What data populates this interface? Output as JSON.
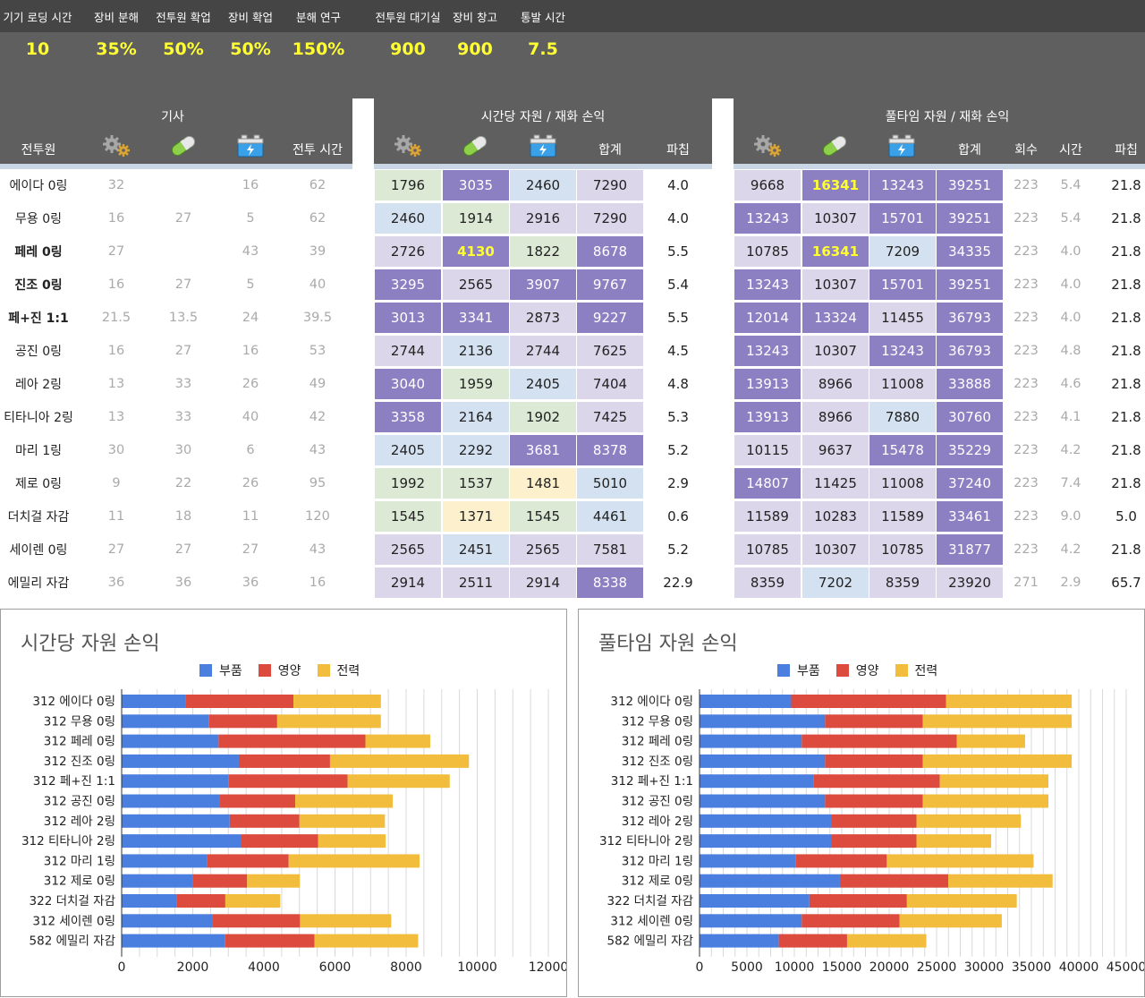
{
  "settings": [
    {
      "label": "기기 로딩 시간",
      "value": "10"
    },
    {
      "label": "장비 분해",
      "value": "35%"
    },
    {
      "label": "전투원 확업",
      "value": "50%"
    },
    {
      "label": "장비 확업",
      "value": "50%"
    },
    {
      "label": "분해 연구",
      "value": "150%"
    },
    {
      "label": "전투원 대기실",
      "value": "900"
    },
    {
      "label": "장비 창고",
      "value": "900"
    },
    {
      "label": "통발 시간",
      "value": "7.5"
    }
  ],
  "groups": {
    "base": "기사",
    "hourly": "시간당 자원 / 재화 손익",
    "fulltime": "풀타임 자원 / 재화 손익"
  },
  "headers": {
    "unit": "전투원",
    "battle_time": "전투 시간",
    "total": "합계",
    "damage": "파칩",
    "total2": "합계",
    "count": "회수",
    "time": "시간",
    "damage2": "파칩"
  },
  "icons": {
    "parts": "gears-icon",
    "nutrition": "capsule-icon",
    "power": "battery-icon"
  },
  "colors": {
    "purple": "#8c7fc2",
    "lavender": "#dcd6ea",
    "blue": "#d4e1f1",
    "green": "#dbe9d5",
    "yellow": "#fdf1cd",
    "highlight_text": "#ffff33",
    "series_parts": "#4a7fe0",
    "series_nutrition": "#dc4b3e",
    "series_power": "#f2bd3c"
  },
  "rows": [
    {
      "name": "에이다 0링",
      "bold": false,
      "base": [
        "32",
        "",
        "16",
        "62"
      ],
      "hourly": [
        {
          "v": "1796",
          "c": "green"
        },
        {
          "v": "3035",
          "c": "purple"
        },
        {
          "v": "2460",
          "c": "blue"
        },
        {
          "v": "7290",
          "c": "lavender"
        }
      ],
      "dmg": "4.0",
      "full": [
        {
          "v": "9668",
          "c": "lavender"
        },
        {
          "v": "16341",
          "c": "purple",
          "hl": true
        },
        {
          "v": "13243",
          "c": "purple"
        },
        {
          "v": "39251",
          "c": "purple"
        }
      ],
      "count": "223",
      "time": "5.4",
      "dmg2": "21.8"
    },
    {
      "name": "무용 0링",
      "bold": false,
      "base": [
        "16",
        "27",
        "5",
        "62"
      ],
      "hourly": [
        {
          "v": "2460",
          "c": "blue"
        },
        {
          "v": "1914",
          "c": "green"
        },
        {
          "v": "2916",
          "c": "lavender"
        },
        {
          "v": "7290",
          "c": "lavender"
        }
      ],
      "dmg": "4.0",
      "full": [
        {
          "v": "13243",
          "c": "purple"
        },
        {
          "v": "10307",
          "c": "lavender"
        },
        {
          "v": "15701",
          "c": "purple"
        },
        {
          "v": "39251",
          "c": "purple"
        }
      ],
      "count": "223",
      "time": "5.4",
      "dmg2": "21.8"
    },
    {
      "name": "페레 0링",
      "bold": true,
      "base": [
        "27",
        "",
        "43",
        "39"
      ],
      "hourly": [
        {
          "v": "2726",
          "c": "lavender"
        },
        {
          "v": "4130",
          "c": "purple",
          "hl": true
        },
        {
          "v": "1822",
          "c": "green"
        },
        {
          "v": "8678",
          "c": "purple"
        }
      ],
      "dmg": "5.5",
      "full": [
        {
          "v": "10785",
          "c": "lavender"
        },
        {
          "v": "16341",
          "c": "purple",
          "hl": true
        },
        {
          "v": "7209",
          "c": "blue"
        },
        {
          "v": "34335",
          "c": "purple"
        }
      ],
      "count": "223",
      "time": "4.0",
      "dmg2": "21.8"
    },
    {
      "name": "진조 0링",
      "bold": true,
      "base": [
        "16",
        "27",
        "5",
        "40"
      ],
      "hourly": [
        {
          "v": "3295",
          "c": "purple"
        },
        {
          "v": "2565",
          "c": "lavender"
        },
        {
          "v": "3907",
          "c": "purple"
        },
        {
          "v": "9767",
          "c": "purple"
        }
      ],
      "dmg": "5.4",
      "full": [
        {
          "v": "13243",
          "c": "purple"
        },
        {
          "v": "10307",
          "c": "lavender"
        },
        {
          "v": "15701",
          "c": "purple"
        },
        {
          "v": "39251",
          "c": "purple"
        }
      ],
      "count": "223",
      "time": "4.0",
      "dmg2": "21.8"
    },
    {
      "name": "페+진 1:1",
      "bold": true,
      "base": [
        "21.5",
        "13.5",
        "24",
        "39.5"
      ],
      "hourly": [
        {
          "v": "3013",
          "c": "purple"
        },
        {
          "v": "3341",
          "c": "purple"
        },
        {
          "v": "2873",
          "c": "lavender"
        },
        {
          "v": "9227",
          "c": "purple"
        }
      ],
      "dmg": "5.5",
      "full": [
        {
          "v": "12014",
          "c": "purple"
        },
        {
          "v": "13324",
          "c": "purple"
        },
        {
          "v": "11455",
          "c": "lavender"
        },
        {
          "v": "36793",
          "c": "purple"
        }
      ],
      "count": "223",
      "time": "4.0",
      "dmg2": "21.8"
    },
    {
      "name": "공진 0링",
      "bold": false,
      "base": [
        "16",
        "27",
        "16",
        "53"
      ],
      "hourly": [
        {
          "v": "2744",
          "c": "lavender"
        },
        {
          "v": "2136",
          "c": "blue"
        },
        {
          "v": "2744",
          "c": "lavender"
        },
        {
          "v": "7625",
          "c": "lavender"
        }
      ],
      "dmg": "4.5",
      "full": [
        {
          "v": "13243",
          "c": "purple"
        },
        {
          "v": "10307",
          "c": "lavender"
        },
        {
          "v": "13243",
          "c": "purple"
        },
        {
          "v": "36793",
          "c": "purple"
        }
      ],
      "count": "223",
      "time": "4.8",
      "dmg2": "21.8"
    },
    {
      "name": "레아 2링",
      "bold": false,
      "base": [
        "13",
        "33",
        "26",
        "49"
      ],
      "hourly": [
        {
          "v": "3040",
          "c": "purple"
        },
        {
          "v": "1959",
          "c": "green"
        },
        {
          "v": "2405",
          "c": "blue"
        },
        {
          "v": "7404",
          "c": "lavender"
        }
      ],
      "dmg": "4.8",
      "full": [
        {
          "v": "13913",
          "c": "purple"
        },
        {
          "v": "8966",
          "c": "lavender"
        },
        {
          "v": "11008",
          "c": "lavender"
        },
        {
          "v": "33888",
          "c": "purple"
        }
      ],
      "count": "223",
      "time": "4.6",
      "dmg2": "21.8"
    },
    {
      "name": "티타니아 2링",
      "bold": false,
      "base": [
        "13",
        "33",
        "40",
        "42"
      ],
      "hourly": [
        {
          "v": "3358",
          "c": "purple"
        },
        {
          "v": "2164",
          "c": "blue"
        },
        {
          "v": "1902",
          "c": "green"
        },
        {
          "v": "7425",
          "c": "lavender"
        }
      ],
      "dmg": "5.3",
      "full": [
        {
          "v": "13913",
          "c": "purple"
        },
        {
          "v": "8966",
          "c": "lavender"
        },
        {
          "v": "7880",
          "c": "blue"
        },
        {
          "v": "30760",
          "c": "purple"
        }
      ],
      "count": "223",
      "time": "4.1",
      "dmg2": "21.8"
    },
    {
      "name": "마리 1링",
      "bold": false,
      "base": [
        "30",
        "30",
        "6",
        "43"
      ],
      "hourly": [
        {
          "v": "2405",
          "c": "blue"
        },
        {
          "v": "2292",
          "c": "blue"
        },
        {
          "v": "3681",
          "c": "purple"
        },
        {
          "v": "8378",
          "c": "purple"
        }
      ],
      "dmg": "5.2",
      "full": [
        {
          "v": "10115",
          "c": "lavender"
        },
        {
          "v": "9637",
          "c": "lavender"
        },
        {
          "v": "15478",
          "c": "purple"
        },
        {
          "v": "35229",
          "c": "purple"
        }
      ],
      "count": "223",
      "time": "4.2",
      "dmg2": "21.8"
    },
    {
      "name": "제로 0링",
      "bold": false,
      "base": [
        "9",
        "22",
        "26",
        "95"
      ],
      "hourly": [
        {
          "v": "1992",
          "c": "green"
        },
        {
          "v": "1537",
          "c": "green"
        },
        {
          "v": "1481",
          "c": "yellow"
        },
        {
          "v": "5010",
          "c": "blue"
        }
      ],
      "dmg": "2.9",
      "full": [
        {
          "v": "14807",
          "c": "purple"
        },
        {
          "v": "11425",
          "c": "lavender"
        },
        {
          "v": "11008",
          "c": "lavender"
        },
        {
          "v": "37240",
          "c": "purple"
        }
      ],
      "count": "223",
      "time": "7.4",
      "dmg2": "21.8"
    },
    {
      "name": "더치걸 자감",
      "bold": false,
      "base": [
        "11",
        "18",
        "11",
        "120"
      ],
      "hourly": [
        {
          "v": "1545",
          "c": "green"
        },
        {
          "v": "1371",
          "c": "yellow"
        },
        {
          "v": "1545",
          "c": "green"
        },
        {
          "v": "4461",
          "c": "blue"
        }
      ],
      "dmg": "0.6",
      "full": [
        {
          "v": "11589",
          "c": "lavender"
        },
        {
          "v": "10283",
          "c": "lavender"
        },
        {
          "v": "11589",
          "c": "lavender"
        },
        {
          "v": "33461",
          "c": "purple"
        }
      ],
      "count": "223",
      "time": "9.0",
      "dmg2": "5.0"
    },
    {
      "name": "세이렌 0링",
      "bold": false,
      "base": [
        "27",
        "27",
        "27",
        "43"
      ],
      "hourly": [
        {
          "v": "2565",
          "c": "lavender"
        },
        {
          "v": "2451",
          "c": "blue"
        },
        {
          "v": "2565",
          "c": "lavender"
        },
        {
          "v": "7581",
          "c": "lavender"
        }
      ],
      "dmg": "5.2",
      "full": [
        {
          "v": "10785",
          "c": "lavender"
        },
        {
          "v": "10307",
          "c": "lavender"
        },
        {
          "v": "10785",
          "c": "lavender"
        },
        {
          "v": "31877",
          "c": "purple"
        }
      ],
      "count": "223",
      "time": "4.2",
      "dmg2": "21.8"
    },
    {
      "name": "에밀리 자감",
      "bold": false,
      "base": [
        "36",
        "36",
        "36",
        "16"
      ],
      "hourly": [
        {
          "v": "2914",
          "c": "lavender"
        },
        {
          "v": "2511",
          "c": "lavender"
        },
        {
          "v": "2914",
          "c": "lavender"
        },
        {
          "v": "8338",
          "c": "purple"
        }
      ],
      "dmg": "22.9",
      "full": [
        {
          "v": "8359",
          "c": "lavender"
        },
        {
          "v": "7202",
          "c": "blue"
        },
        {
          "v": "8359",
          "c": "lavender"
        },
        {
          "v": "23920",
          "c": "lavender"
        }
      ],
      "count": "271",
      "time": "2.9",
      "dmg2": "65.7"
    }
  ],
  "chart_data": [
    {
      "type": "bar",
      "orientation": "horizontal",
      "stacked": true,
      "title": "시간당 자원 손익",
      "legend_position": "top",
      "grid": true,
      "categories": [
        "312 에이다 0링",
        "312 무용 0링",
        "312 페레 0링",
        "312 진조 0링",
        "312 페+진 1:1",
        "312 공진 0링",
        "312 레아 2링",
        "312 티타니아 2링",
        "312 마리 1링",
        "312 제로 0링",
        "322 더치걸 자감",
        "312 세이렌 0링",
        "582 에밀리 자감"
      ],
      "series": [
        {
          "name": "부품",
          "values": [
            1796,
            2460,
            2726,
            3295,
            3013,
            2744,
            3040,
            3358,
            2405,
            1992,
            1545,
            2565,
            2914
          ]
        },
        {
          "name": "영양",
          "values": [
            3035,
            1914,
            4130,
            2565,
            3341,
            2136,
            1959,
            2164,
            2292,
            1537,
            1371,
            2451,
            2511
          ]
        },
        {
          "name": "전력",
          "values": [
            2460,
            2916,
            1822,
            3907,
            2873,
            2744,
            2405,
            1902,
            3681,
            1481,
            1545,
            2565,
            2914
          ]
        }
      ],
      "xlim": [
        0,
        12000
      ],
      "ticks": [
        "0",
        "2000",
        "4000",
        "6000",
        "8000",
        "10000",
        "12000"
      ]
    },
    {
      "type": "bar",
      "orientation": "horizontal",
      "stacked": true,
      "title": "풀타임 자원 손익",
      "legend_position": "top",
      "grid": true,
      "categories": [
        "312 에이다 0링",
        "312 무용 0링",
        "312 페레 0링",
        "312 진조 0링",
        "312 페+진 1:1",
        "312 공진 0링",
        "312 레아 2링",
        "312 티타니아 2링",
        "312 마리 1링",
        "312 제로 0링",
        "322 더치걸 자감",
        "312 세이렌 0링",
        "582 에밀리 자감"
      ],
      "series": [
        {
          "name": "부품",
          "values": [
            9668,
            13243,
            10785,
            13243,
            12014,
            13243,
            13913,
            13913,
            10115,
            14807,
            11589,
            10785,
            8359
          ]
        },
        {
          "name": "영양",
          "values": [
            16341,
            10307,
            16341,
            10307,
            13324,
            10307,
            8966,
            8966,
            9637,
            11425,
            10283,
            10307,
            7202
          ]
        },
        {
          "name": "전력",
          "values": [
            13243,
            15701,
            7209,
            15701,
            11455,
            13243,
            11008,
            7880,
            15478,
            11008,
            11589,
            10785,
            8359
          ]
        }
      ],
      "xlim": [
        0,
        45000
      ],
      "ticks": [
        "0",
        "5000",
        "10000",
        "15000",
        "20000",
        "25000",
        "30000",
        "35000",
        "40000",
        "45000"
      ]
    }
  ]
}
